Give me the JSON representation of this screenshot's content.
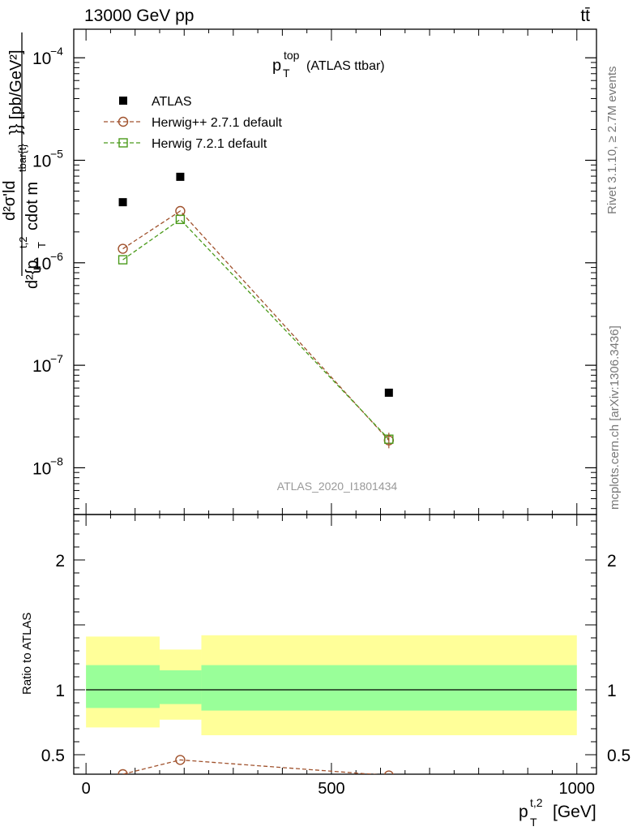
{
  "header": {
    "left": "13000 GeV pp",
    "right": "tt̄"
  },
  "side_text": {
    "rivet": "Rivet 3.1.10, ≥ 2.7M events",
    "mcplots": "mcplots.cern.ch [arXiv:1306.3436]"
  },
  "main_plot": {
    "title_base": "p",
    "title_sup": "top",
    "title_sub": "T",
    "title_rest": "(ATLAS ttbar)",
    "watermark": "ATLAS_2020_I1801434",
    "ylabel": {
      "top": "d²σ'ld",
      "bottom_a": "d²{p",
      "bottom_sup": "t,2",
      "bottom_sub": "T",
      "bottom_b": "cdot m",
      "bottom_sup2": "tbar{t}",
      "bottom_c": "}} [pb/GeV²]"
    },
    "yticks": [
      {
        "base": "10",
        "exp": "−4",
        "value": 0.0001
      },
      {
        "base": "10",
        "exp": "−5",
        "value": 1e-05
      },
      {
        "base": "10",
        "exp": "−6",
        "value": 1e-06
      },
      {
        "base": "10",
        "exp": "−7",
        "value": 1e-07
      },
      {
        "base": "10",
        "exp": "−8",
        "value": 1e-08
      }
    ]
  },
  "ratio_plot": {
    "ylabel": "Ratio to ATLAS",
    "yticks": [
      {
        "label": "2",
        "value": 2
      },
      {
        "label": "1",
        "value": 1
      },
      {
        "label": "0.5",
        "value": 0.5
      }
    ]
  },
  "xaxis": {
    "label_base": "p",
    "label_sup": "t,2",
    "label_sub": "T",
    "label_unit": "[GeV]",
    "ticks": [
      {
        "label": "0",
        "value": 0
      },
      {
        "label": "500",
        "value": 500
      },
      {
        "label": "1000",
        "value": 1000
      }
    ]
  },
  "legend": [
    {
      "label": "ATLAS",
      "color": "#000000",
      "marker": "square-filled"
    },
    {
      "label": "Herwig++ 2.7.1 default",
      "color": "#a0522d",
      "marker": "circle-open"
    },
    {
      "label": "Herwig 7.2.1 default",
      "color": "#4a9a1a",
      "marker": "square-open"
    }
  ],
  "chart_data": {
    "type": "scatter",
    "x_range": [
      -25,
      1040
    ],
    "y_range_main": [
      3.5e-09,
      0.00019
    ],
    "y_scale_main": "log",
    "y_range_ratio": [
      0.35,
      2.35
    ],
    "bins": [
      [
        0,
        150
      ],
      [
        150,
        235
      ],
      [
        235,
        1000
      ]
    ],
    "x": [
      75,
      192,
      617
    ],
    "series": [
      {
        "name": "ATLAS",
        "values": [
          3.9e-06,
          6.9e-06,
          5.4e-08
        ],
        "color": "#000000"
      },
      {
        "name": "Herwig++ 2.7.1 default",
        "values": [
          1.37e-06,
          3.2e-06,
          1.85e-08
        ],
        "color": "#a0522d"
      },
      {
        "name": "Herwig 7.2.1 default",
        "values": [
          1.07e-06,
          2.65e-06,
          1.9e-08
        ],
        "color": "#4a9a1a"
      }
    ],
    "ratio": {
      "band_outer": [
        [
          0.71,
          1.41
        ],
        [
          0.77,
          1.31
        ],
        [
          0.65,
          1.42
        ]
      ],
      "band_inner": [
        [
          0.86,
          1.19
        ],
        [
          0.89,
          1.15
        ],
        [
          0.84,
          1.19
        ]
      ],
      "band_outer_color": "#ffff99",
      "band_inner_color": "#99ff99",
      "series": [
        {
          "name": "Herwig++ 2.7.1 default",
          "values": [
            0.35,
            0.46,
            0.34
          ],
          "color": "#a0522d"
        }
      ]
    }
  }
}
